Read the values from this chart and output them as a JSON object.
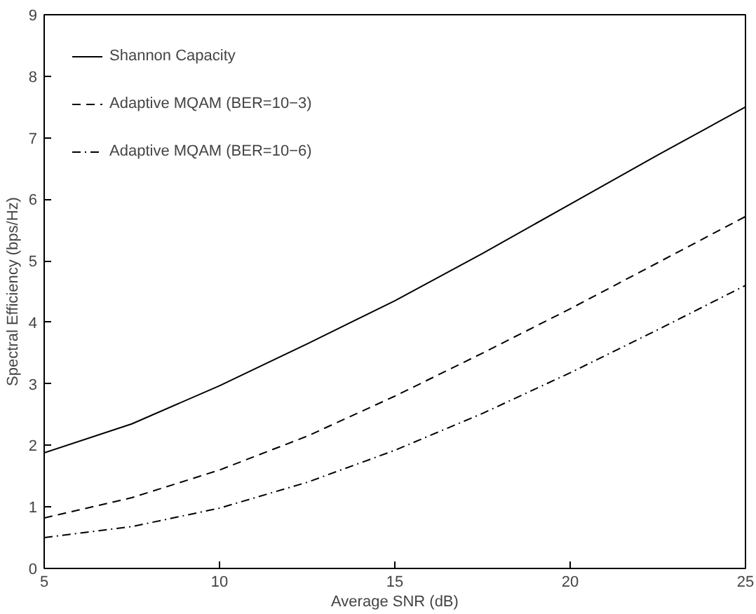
{
  "chart_data": {
    "type": "line",
    "xlabel": "Average SNR (dB)",
    "ylabel": "Spectral Efficiency (bps/Hz)",
    "x": [
      5,
      7.5,
      10,
      12.5,
      15,
      17.5,
      20,
      22.5,
      25
    ],
    "xlim": [
      5,
      25
    ],
    "xticks": [
      5,
      10,
      15,
      20,
      25
    ],
    "ylim": [
      0,
      9
    ],
    "yticks": [
      0,
      1,
      2,
      3,
      4,
      5,
      6,
      7,
      8,
      9
    ],
    "grid": false,
    "legend": "top left",
    "marker": "none",
    "series": [
      {
        "name": "Shannon Capacity",
        "color": "#000000",
        "line_style": "solid",
        "values": [
          1.88,
          2.35,
          2.97,
          3.65,
          4.35,
          5.12,
          5.92,
          6.72,
          7.5
        ]
      },
      {
        "name": "Adaptive MQAM (BER=10−3)",
        "color": "#000000",
        "line_style": "dashed",
        "values": [
          0.82,
          1.15,
          1.6,
          2.15,
          2.8,
          3.5,
          4.22,
          4.97,
          5.72
        ]
      },
      {
        "name": "Adaptive MQAM (BER=10−6)",
        "color": "#000000",
        "line_style": "dashdot",
        "values": [
          0.5,
          0.68,
          0.98,
          1.4,
          1.92,
          2.52,
          3.18,
          3.88,
          4.6
        ]
      }
    ]
  }
}
